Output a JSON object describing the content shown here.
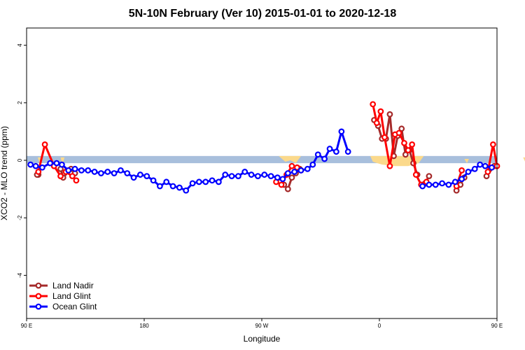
{
  "chart_data": {
    "type": "line",
    "title": "5N-10N February (Ver 10)   2015-01-01 to 2020-12-18",
    "xlabel": "Longitude",
    "ylabel": "XCO2 - MLO trend (ppm)",
    "xlim": [
      90,
      450
    ],
    "ylim": [
      -5.5,
      4.6
    ],
    "x_ticks": [
      {
        "value": 90,
        "label": "90 E"
      },
      {
        "value": 180,
        "label": "180"
      },
      {
        "value": 270,
        "label": "90 W"
      },
      {
        "value": 360,
        "label": "0"
      },
      {
        "value": 450,
        "label": "90 E"
      },
      {
        "value": 540,
        "label": "180"
      }
    ],
    "x_ticks_note": "x values are longitude in degrees east, continuing past 360 (450 = 90 E, 540 = 180)",
    "y_ticks": [
      -4,
      -2,
      0,
      2,
      4
    ],
    "grid": false,
    "legend_position": "bottom-left",
    "reference_band": {
      "y": [
        -0.1,
        0.15
      ],
      "color": "#a8bfdc"
    },
    "land_fill_color": "#fbd98b",
    "series": [
      {
        "name": "Land Nadir",
        "color": "#a52a2a",
        "segments": [
          {
            "x": [
              99,
              98
            ],
            "y": [
              -0.5,
              -0.5
            ]
          },
          {
            "x": [
              116,
              118,
              124,
              127
            ],
            "y": [
              -0.3,
              -0.6,
              -0.3,
              -0.45
            ]
          },
          {
            "x": [
              284,
              287,
              290,
              293,
              296,
              299
            ],
            "y": [
              -0.75,
              -0.85,
              -1.0,
              -0.6,
              -0.45,
              -0.3
            ]
          },
          {
            "x": [
              356,
              359,
              362,
              365,
              368,
              371,
              374,
              377,
              380,
              383,
              386,
              389
            ],
            "y": [
              1.4,
              1.2,
              0.75,
              0.75,
              1.6,
              0.15,
              0.85,
              1.1,
              0.2,
              0.35,
              -0.1,
              -0.5
            ]
          },
          {
            "x": [
              398,
              395
            ],
            "y": [
              -0.55,
              -0.8
            ]
          },
          {
            "x": [
              419,
              422,
              425
            ],
            "y": [
              -1.05,
              -0.85,
              -0.6
            ]
          },
          {
            "x": [
              442,
              448
            ],
            "y": [
              -0.55,
              -0.2
            ]
          },
          {
            "x": [
              476,
              478,
              482,
              485
            ],
            "y": [
              -0.65,
              -0.3,
              -0.55,
              -0.45
            ]
          }
        ]
      },
      {
        "name": "Land Glint",
        "color": "#ff0000",
        "segments": [
          {
            "x": [
              99,
              104,
              111,
              116
            ],
            "y": [
              -0.4,
              0.55,
              -0.2,
              -0.55
            ]
          },
          {
            "x": [
              120,
              125,
              128
            ],
            "y": [
              -0.4,
              -0.55,
              -0.7
            ]
          },
          {
            "x": [
              281,
              285,
              289,
              293,
              297,
              300
            ],
            "y": [
              -0.75,
              -0.85,
              -0.5,
              -0.2,
              -0.25,
              -0.35
            ]
          },
          {
            "x": [
              355,
              358,
              361,
              364,
              368,
              372,
              375,
              379,
              382,
              385,
              388,
              392,
              396
            ],
            "y": [
              1.95,
              1.3,
              1.7,
              0.8,
              -0.2,
              0.9,
              0.95,
              0.6,
              0.35,
              0.55,
              -0.5,
              -0.85,
              -0.75
            ]
          },
          {
            "x": [
              419,
              423
            ],
            "y": [
              -0.9,
              -0.35
            ]
          },
          {
            "x": [
              443,
              447,
              450
            ],
            "y": [
              -0.4,
              0.55,
              -0.2
            ]
          },
          {
            "x": [
              474,
              480,
              483
            ],
            "y": [
              -0.5,
              -0.65,
              -0.7
            ]
          }
        ]
      },
      {
        "name": "Ocean Glint",
        "color": "#0000ff",
        "segments": [
          {
            "x": [
              93,
              97,
              102,
              108,
              113,
              117,
              122,
              127,
              132,
              137,
              142,
              147,
              152,
              157,
              162,
              167,
              172,
              177,
              182,
              187,
              192,
              197,
              202,
              207,
              212,
              217,
              222,
              227,
              232,
              237,
              242,
              247,
              252,
              257,
              262,
              267,
              272,
              277,
              282,
              286,
              290,
              295,
              300,
              305,
              309,
              313,
              318,
              322,
              327,
              331,
              336
            ],
            "y": [
              -0.15,
              -0.2,
              -0.25,
              -0.1,
              -0.1,
              -0.15,
              -0.35,
              -0.3,
              -0.35,
              -0.35,
              -0.4,
              -0.45,
              -0.4,
              -0.45,
              -0.35,
              -0.45,
              -0.6,
              -0.5,
              -0.55,
              -0.7,
              -0.9,
              -0.75,
              -0.9,
              -0.95,
              -1.05,
              -0.8,
              -0.75,
              -0.75,
              -0.7,
              -0.75,
              -0.5,
              -0.55,
              -0.55,
              -0.4,
              -0.5,
              -0.55,
              -0.5,
              -0.55,
              -0.6,
              -0.65,
              -0.45,
              -0.4,
              -0.35,
              -0.3,
              -0.15,
              0.2,
              0.05,
              0.4,
              0.3,
              1.0,
              0.3
            ]
          },
          {
            "x": [
              393,
              398,
              403,
              408,
              413,
              418,
              423,
              428,
              433,
              437,
              441,
              446,
              451,
              456,
              461,
              466,
              471,
              476,
              481,
              486,
              491,
              496,
              501,
              506,
              511,
              516,
              521,
              526,
              531,
              536,
              541,
              546,
              551,
              556,
              561,
              566
            ],
            "y": [
              -0.9,
              -0.85,
              -0.85,
              -0.8,
              -0.85,
              -0.75,
              -0.65,
              -0.4,
              -0.3,
              -0.15,
              -0.2,
              -0.25,
              -0.1,
              -0.1,
              -0.2,
              -0.3,
              -0.3,
              -0.35,
              -0.35,
              -0.4,
              -0.45,
              -0.45,
              -0.4,
              -0.45,
              -0.45,
              -0.6,
              -0.5,
              -0.45,
              -0.35,
              -0.35,
              -0.4,
              -0.45,
              -0.45,
              -0.4,
              -0.5,
              -0.6
            ]
          }
        ]
      }
    ]
  }
}
